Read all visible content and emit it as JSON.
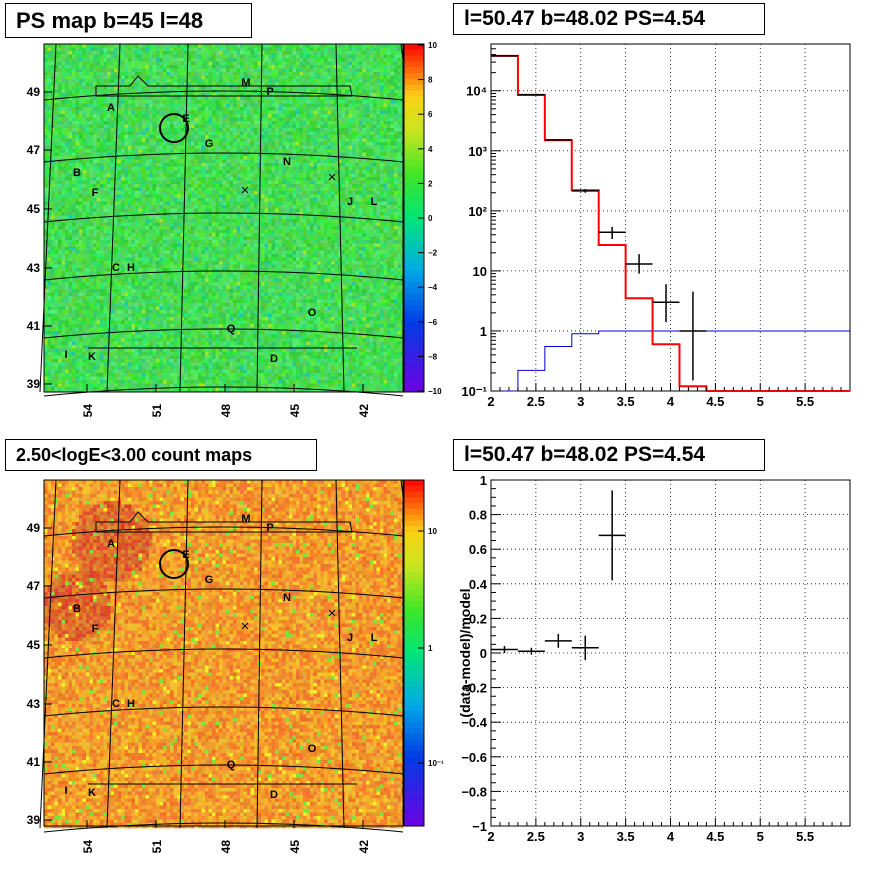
{
  "panels": {
    "map_top": {
      "title": "PS map b=45 l=48",
      "x_ticks": [
        "54",
        "51",
        "48",
        "45",
        "42"
      ],
      "y_ticks": [
        "39",
        "41",
        "43",
        "45",
        "47",
        "49"
      ],
      "colorbar_ticks": [
        "10",
        "8",
        "6",
        "4",
        "2",
        "0",
        "−2",
        "−4",
        "−6",
        "−8",
        "−10"
      ],
      "colorbar_range": [
        -10,
        10
      ]
    },
    "spectrum": {
      "title": "l=50.47 b=48.02 PS=4.54",
      "x_ticks": [
        "2",
        "2.5",
        "3",
        "3.5",
        "4",
        "4.5",
        "5",
        "5.5"
      ],
      "y_ticks": [
        "10⁻¹",
        "1",
        "10",
        "10²",
        "10³",
        "10⁴"
      ]
    },
    "map_bottom": {
      "title": "2.50<logE<3.00 count maps",
      "x_ticks": [
        "54",
        "51",
        "48",
        "45",
        "42"
      ],
      "y_ticks": [
        "39",
        "41",
        "43",
        "45",
        "47",
        "49"
      ],
      "colorbar_ticks": [
        "10",
        "1",
        "10⁻¹"
      ]
    },
    "residual": {
      "title": "l=50.47 b=48.02 PS=4.54",
      "ylabel": "(data-model)/model",
      "x_ticks": [
        "2",
        "2.5",
        "3",
        "3.5",
        "4",
        "4.5",
        "5",
        "5.5"
      ],
      "y_ticks": [
        "1",
        "0.8",
        "0.6",
        "0.4",
        "0.2",
        "0",
        "−0.2",
        "−0.4",
        "−0.6",
        "−0.8",
        "−1"
      ]
    }
  },
  "source_labels": [
    "A",
    "B",
    "C",
    "D",
    "E",
    "F",
    "G",
    "H",
    "I",
    "J",
    "K",
    "L",
    "M",
    "N",
    "O",
    "P",
    "Q"
  ],
  "colors": {
    "model_histogram": "#ff0000",
    "background_histogram": "#0000cc",
    "data_points": "#000000",
    "map_top_base": "#33dd33",
    "map_bottom_base": "#ee8833"
  },
  "chart_data": [
    {
      "type": "heatmap",
      "title": "PS map b=45 l=48",
      "xlabel": "",
      "ylabel": "",
      "xlim": [
        55.5,
        40
      ],
      "ylim": [
        38.8,
        50.5
      ],
      "zlim": [
        -10,
        10
      ],
      "markers": [
        "A",
        "B",
        "C",
        "D",
        "E",
        "F",
        "G",
        "H",
        "I",
        "J",
        "K",
        "L",
        "M",
        "N",
        "O",
        "P",
        "Q"
      ]
    },
    {
      "type": "line",
      "title": "l=50.47 b=48.02 PS=4.54",
      "xlim": [
        2,
        6
      ],
      "ylim": [
        0.1,
        60000
      ],
      "yscale": "log",
      "grid": true,
      "bin_edges": [
        2.0,
        2.3,
        2.6,
        2.9,
        3.2,
        3.5,
        3.8,
        4.1,
        4.4,
        6.0
      ],
      "series": [
        {
          "values": [
            38000,
            8500,
            1500,
            220,
            27,
            3.5,
            0.6,
            0.12,
            0.1
          ]
        },
        {
          "values": [
            0.1,
            0.22,
            0.55,
            0.9,
            1.0,
            1.0,
            1.0,
            1.0,
            1.0
          ]
        },
        {
          "x": [
            2.15,
            2.45,
            2.75,
            3.05,
            3.35,
            3.65,
            3.95,
            4.25
          ],
          "y": [
            38000,
            8600,
            1520,
            215,
            44,
            13,
            3.0,
            1.0
          ],
          "yerr_low": [
            200,
            90,
            40,
            15,
            10,
            4,
            1.6,
            0.85
          ],
          "yerr_high": [
            200,
            90,
            40,
            15,
            10,
            6,
            3.0,
            3.5
          ]
        }
      ]
    },
    {
      "type": "heatmap",
      "title": "2.50<logE<3.00 count maps",
      "xlim": [
        55.5,
        40
      ],
      "ylim": [
        38.8,
        50.5
      ],
      "zscale": "log",
      "zlim": [
        0.05,
        30
      ]
    },
    {
      "type": "scatter",
      "title": "l=50.47 b=48.02 PS=4.54",
      "ylabel": "(data-model)/model",
      "xlim": [
        2,
        6
      ],
      "ylim": [
        -1,
        1
      ],
      "grid": true,
      "x": [
        2.15,
        2.45,
        2.75,
        3.05,
        3.35
      ],
      "y": [
        0.02,
        0.01,
        0.07,
        0.03,
        0.68
      ],
      "yerr": [
        0.02,
        0.02,
        0.04,
        0.07,
        0.26
      ],
      "xerr": [
        0.15,
        0.15,
        0.15,
        0.15,
        0.15
      ]
    }
  ]
}
